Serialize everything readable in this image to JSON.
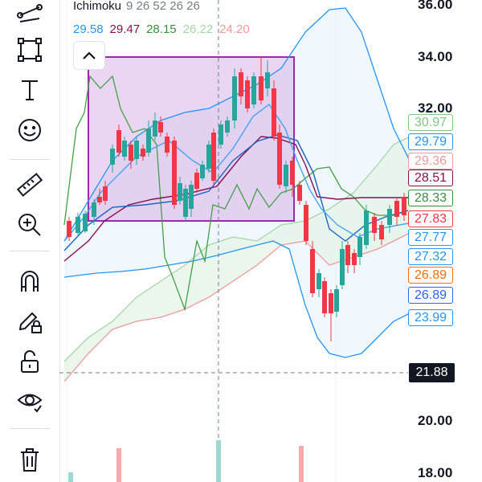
{
  "indicator": {
    "name": "Ichimoku",
    "params": "9 26 52 26 26",
    "values": [
      {
        "text": "29.58",
        "color": "#2196f3"
      },
      {
        "text": "29.47",
        "color": "#880e4f"
      },
      {
        "text": "28.15",
        "color": "#388e3c"
      },
      {
        "text": "26.22",
        "color": "#a5d6a7"
      },
      {
        "text": "24.20",
        "color": "#ef9a9a"
      }
    ]
  },
  "price_axis": [
    "36.00",
    "34.00",
    "32.00",
    "20.00",
    "18.00"
  ],
  "current_price": "21.88",
  "price_labels": [
    {
      "text": "30.97",
      "color": "#81c784"
    },
    {
      "text": "29.79",
      "color": "#2196f3"
    },
    {
      "text": "29.36",
      "color": "#ef9a9a"
    },
    {
      "text": "28.51",
      "color": "#880e4f"
    },
    {
      "text": "28.33",
      "color": "#388e3c"
    },
    {
      "text": "27.83",
      "color": "#f23645"
    },
    {
      "text": "27.77",
      "color": "#2196f3"
    },
    {
      "text": "27.32",
      "color": "#2196f3"
    },
    {
      "text": "26.89",
      "color": "#ff6d00"
    },
    {
      "text": "26.89",
      "color": "#2962ff"
    },
    {
      "text": "23.99",
      "color": "#2196f3"
    }
  ],
  "toolbar": [
    {
      "name": "trend-line-tool",
      "icon": "trend-line-icon"
    },
    {
      "name": "rectangle-tool",
      "icon": "rectangle-icon"
    },
    {
      "name": "text-tool",
      "icon": "text-icon"
    },
    {
      "name": "emoji-tool",
      "icon": "emoji-icon"
    },
    {
      "name": "ruler-tool",
      "icon": "ruler-icon"
    },
    {
      "name": "zoom-in-tool",
      "icon": "zoom-in-icon"
    },
    {
      "name": "magnet-tool",
      "icon": "magnet-icon"
    },
    {
      "name": "lock-drawings-tool",
      "icon": "pencil-lock-icon"
    },
    {
      "name": "unlock-tool",
      "icon": "unlock-icon"
    },
    {
      "name": "hide-drawings-tool",
      "icon": "eye-icon"
    },
    {
      "name": "delete-tool",
      "icon": "trash-icon"
    }
  ],
  "colors": {
    "up": "#26a69a",
    "down": "#f23645",
    "rectangle": "#9c27b0",
    "cloud_bull": "#a5d6a7",
    "cloud_bear": "#ef9a9a",
    "bollinger": "#2196f3"
  }
}
